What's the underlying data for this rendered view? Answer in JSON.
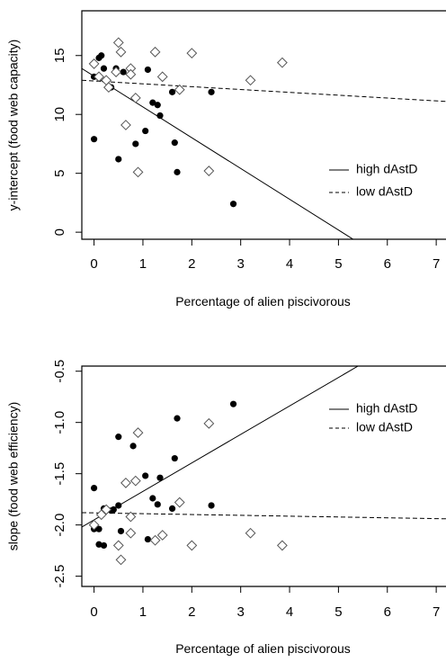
{
  "chart_data": [
    {
      "type": "scatter",
      "title": "",
      "xlabel": "Percentage of alien piscivorous",
      "ylabel": "y-intercept (food web capacity)",
      "xlim": [
        -0.25,
        7.2
      ],
      "ylim": [
        -0.6,
        18.8
      ],
      "xticks": [
        "0",
        "1",
        "2",
        "3",
        "4",
        "5",
        "6",
        "7"
      ],
      "yticks": [
        "0",
        "5",
        "10",
        "15"
      ],
      "legend_position": "right",
      "legend": [
        {
          "label": "high dAstD",
          "line": "solid"
        },
        {
          "label": "low dAstD",
          "line": "dashed"
        }
      ],
      "series": [
        {
          "marker": "filled-circle",
          "points": [
            [
              0.0,
              13.2
            ],
            [
              0.1,
              14.8
            ],
            [
              0.15,
              15.0
            ],
            [
              0.2,
              13.9
            ],
            [
              0.35,
              12.3
            ],
            [
              0.45,
              13.9
            ],
            [
              0.6,
              13.6
            ],
            [
              0.0,
              7.9
            ],
            [
              0.5,
              6.2
            ],
            [
              0.85,
              7.5
            ],
            [
              1.05,
              8.6
            ],
            [
              1.1,
              13.8
            ],
            [
              1.2,
              11.0
            ],
            [
              1.3,
              10.8
            ],
            [
              1.35,
              9.9
            ],
            [
              1.6,
              11.9
            ],
            [
              1.65,
              7.6
            ],
            [
              1.7,
              5.1
            ],
            [
              2.4,
              11.9
            ],
            [
              2.85,
              2.4
            ]
          ]
        },
        {
          "marker": "open-diamond",
          "points": [
            [
              0.0,
              14.3
            ],
            [
              0.1,
              13.2
            ],
            [
              0.25,
              12.9
            ],
            [
              0.3,
              12.3
            ],
            [
              0.45,
              13.6
            ],
            [
              0.5,
              16.1
            ],
            [
              0.55,
              15.3
            ],
            [
              0.65,
              9.1
            ],
            [
              0.75,
              13.9
            ],
            [
              0.75,
              13.4
            ],
            [
              0.85,
              11.4
            ],
            [
              0.9,
              5.1
            ],
            [
              1.25,
              15.3
            ],
            [
              1.4,
              13.2
            ],
            [
              1.75,
              12.1
            ],
            [
              2.0,
              15.2
            ],
            [
              2.35,
              5.2
            ],
            [
              3.2,
              12.9
            ],
            [
              3.85,
              14.4
            ]
          ]
        }
      ],
      "lines": [
        {
          "name": "high dAstD",
          "x": [
            -0.25,
            5.3
          ],
          "y": [
            13.9,
            -0.6
          ]
        },
        {
          "name": "low dAstD",
          "x": [
            -0.25,
            7.2
          ],
          "y": [
            12.9,
            11.1
          ]
        }
      ]
    },
    {
      "type": "scatter",
      "title": "",
      "xlabel": "Percentage of alien piscivorous",
      "ylabel": "slope (food web efficiency)",
      "xlim": [
        -0.25,
        7.2
      ],
      "ylim": [
        -2.6,
        -0.45
      ],
      "xticks": [
        "0",
        "1",
        "2",
        "3",
        "4",
        "5",
        "6",
        "7"
      ],
      "yticks": [
        "-2.5",
        "-2.0",
        "-1.5",
        "-1.0",
        "-0.5"
      ],
      "legend_position": "right",
      "legend": [
        {
          "label": "high dAstD",
          "line": "solid"
        },
        {
          "label": "low dAstD",
          "line": "dashed"
        }
      ],
      "series": [
        {
          "marker": "filled-circle",
          "points": [
            [
              0.0,
              -1.64
            ],
            [
              0.0,
              -2.04
            ],
            [
              0.1,
              -2.04
            ],
            [
              0.1,
              -2.19
            ],
            [
              0.2,
              -2.2
            ],
            [
              0.2,
              -1.84
            ],
            [
              0.35,
              -1.86
            ],
            [
              0.4,
              -1.85
            ],
            [
              0.5,
              -1.81
            ],
            [
              0.5,
              -1.14
            ],
            [
              0.55,
              -2.06
            ],
            [
              0.8,
              -1.23
            ],
            [
              1.05,
              -1.52
            ],
            [
              1.1,
              -2.14
            ],
            [
              1.2,
              -1.74
            ],
            [
              1.3,
              -1.8
            ],
            [
              1.35,
              -1.54
            ],
            [
              1.6,
              -1.84
            ],
            [
              1.65,
              -1.35
            ],
            [
              1.7,
              -0.96
            ],
            [
              2.4,
              -1.81
            ],
            [
              2.85,
              -0.82
            ]
          ]
        },
        {
          "marker": "open-diamond",
          "points": [
            [
              0.0,
              -2.0
            ],
            [
              0.15,
              -1.9
            ],
            [
              0.25,
              -1.85
            ],
            [
              0.5,
              -2.2
            ],
            [
              0.55,
              -2.34
            ],
            [
              0.65,
              -1.59
            ],
            [
              0.75,
              -1.92
            ],
            [
              0.75,
              -2.08
            ],
            [
              0.85,
              -1.57
            ],
            [
              0.9,
              -1.1
            ],
            [
              1.25,
              -2.15
            ],
            [
              1.4,
              -2.1
            ],
            [
              1.75,
              -1.78
            ],
            [
              2.0,
              -2.2
            ],
            [
              2.35,
              -1.01
            ],
            [
              3.2,
              -2.08
            ],
            [
              3.85,
              -2.2
            ]
          ]
        }
      ],
      "lines": [
        {
          "name": "high dAstD",
          "x": [
            -0.25,
            5.4
          ],
          "y": [
            -2.02,
            -0.45
          ]
        },
        {
          "name": "low dAstD",
          "x": [
            -0.25,
            7.2
          ],
          "y": [
            -1.88,
            -1.94
          ]
        }
      ]
    }
  ]
}
